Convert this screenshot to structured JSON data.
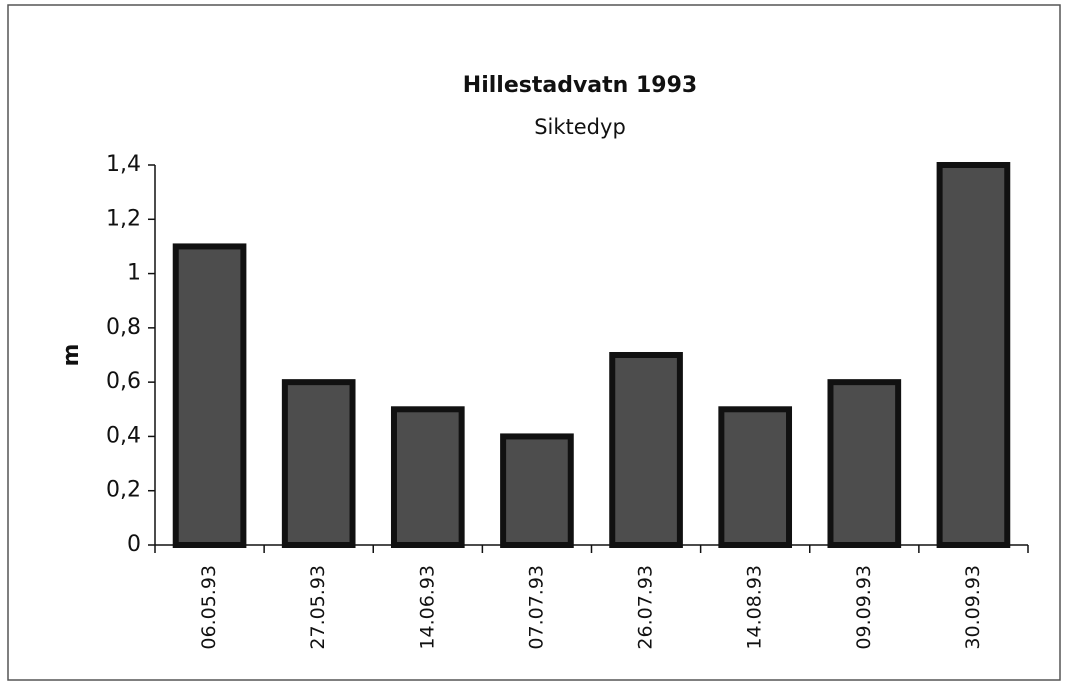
{
  "chart_data": {
    "type": "bar",
    "title": "Hillestadvatn 1993",
    "subtitle": "Siktedyp",
    "ylabel": "m",
    "categories": [
      "06.05.93",
      "27.05.93",
      "14.06.93",
      "07.07.93",
      "26.07.93",
      "14.08.93",
      "09.09.93",
      "30.09.93"
    ],
    "values": [
      1.1,
      0.6,
      0.5,
      0.4,
      0.7,
      0.5,
      0.6,
      1.4
    ],
    "color": "#4d4d4d",
    "ylim": [
      0,
      1.4
    ],
    "yticks": [
      0,
      {
        "value": 0.2,
        "label": "0,2"
      },
      {
        "value": 0.4,
        "label": "0,4"
      },
      {
        "value": 0.6,
        "label": "0,6"
      },
      {
        "value": 0.8,
        "label": "0,8"
      },
      1,
      {
        "value": 1.2,
        "label": "1,2"
      },
      {
        "value": 1.4,
        "label": "1,4"
      }
    ],
    "grid": false
  }
}
